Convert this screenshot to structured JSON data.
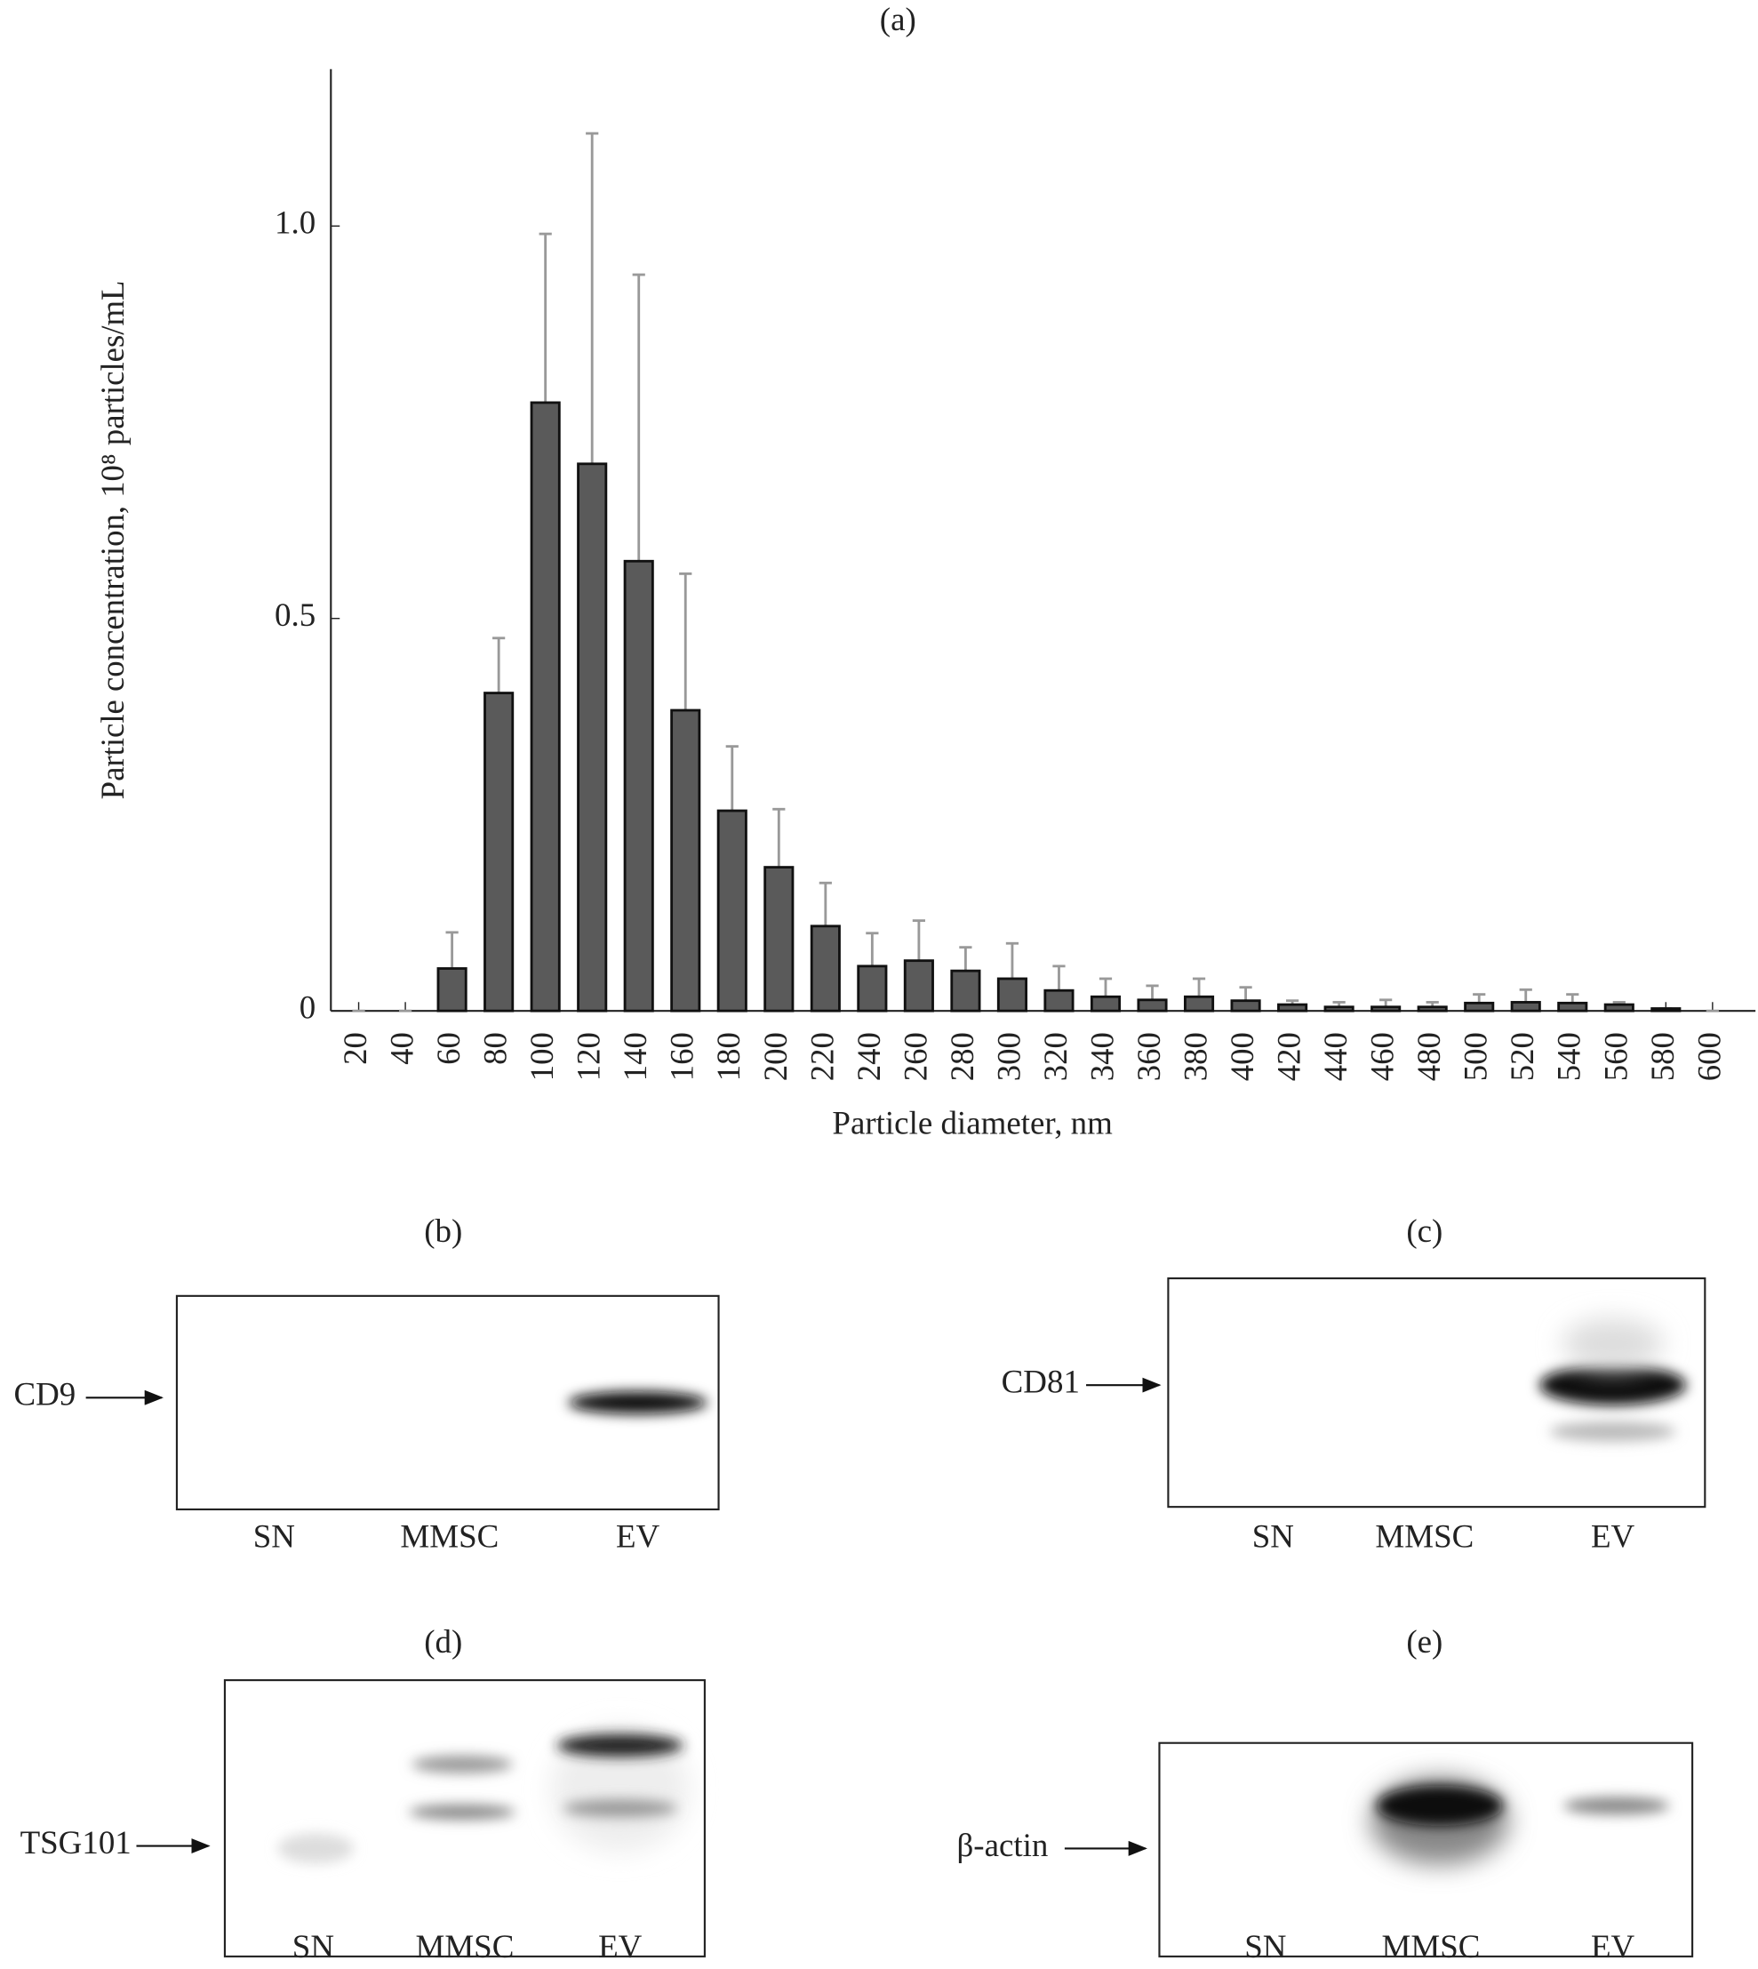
{
  "chart_data": {
    "type": "bar",
    "title": "(a)",
    "x_label": "Particle diameter, nm",
    "y_label": "Particle concentration, 10⁸ particles/mL",
    "categories": [
      "20",
      "40",
      "60",
      "80",
      "100",
      "120",
      "140",
      "160",
      "180",
      "200",
      "220",
      "240",
      "260",
      "280",
      "300",
      "320",
      "340",
      "360",
      "380",
      "400",
      "420",
      "440",
      "460",
      "480",
      "500",
      "520",
      "540",
      "560",
      "580",
      "600"
    ],
    "values": [
      0,
      0,
      0.054,
      0.405,
      0.775,
      0.697,
      0.573,
      0.383,
      0.255,
      0.183,
      0.108,
      0.057,
      0.064,
      0.051,
      0.041,
      0.026,
      0.018,
      0.014,
      0.018,
      0.013,
      0.008,
      0.005,
      0.005,
      0.005,
      0.01,
      0.011,
      0.01,
      0.008,
      0.003,
      0
    ],
    "errors": [
      0,
      0,
      0.046,
      0.07,
      0.215,
      0.421,
      0.365,
      0.174,
      0.082,
      0.074,
      0.055,
      0.042,
      0.051,
      0.03,
      0.045,
      0.031,
      0.023,
      0.018,
      0.023,
      0.017,
      0.005,
      0.006,
      0.009,
      0.006,
      0.011,
      0.016,
      0.011,
      0.003,
      0,
      0
    ],
    "color": "#5a5a5a",
    "ylim": [
      0,
      1.2
    ],
    "yticks": [
      0,
      {
        "value": 0.5,
        "label": "0.5"
      },
      {
        "value": 1,
        "label": "1.0"
      }
    ]
  },
  "panels": [
    {
      "label": "(b)",
      "protein": "CD9",
      "lanes": [
        "SN",
        "MMSC",
        "EV"
      ]
    },
    {
      "label": "(c)",
      "protein": "CD81",
      "lanes": [
        "SN",
        "MMSC",
        "EV"
      ]
    },
    {
      "label": "(d)",
      "protein": "TSG101",
      "lanes": [
        "SN",
        "MMSC",
        "EV"
      ]
    },
    {
      "label": "(e)",
      "protein": "β-actin",
      "lanes": [
        "SN",
        "MMSC",
        "EV"
      ]
    }
  ]
}
